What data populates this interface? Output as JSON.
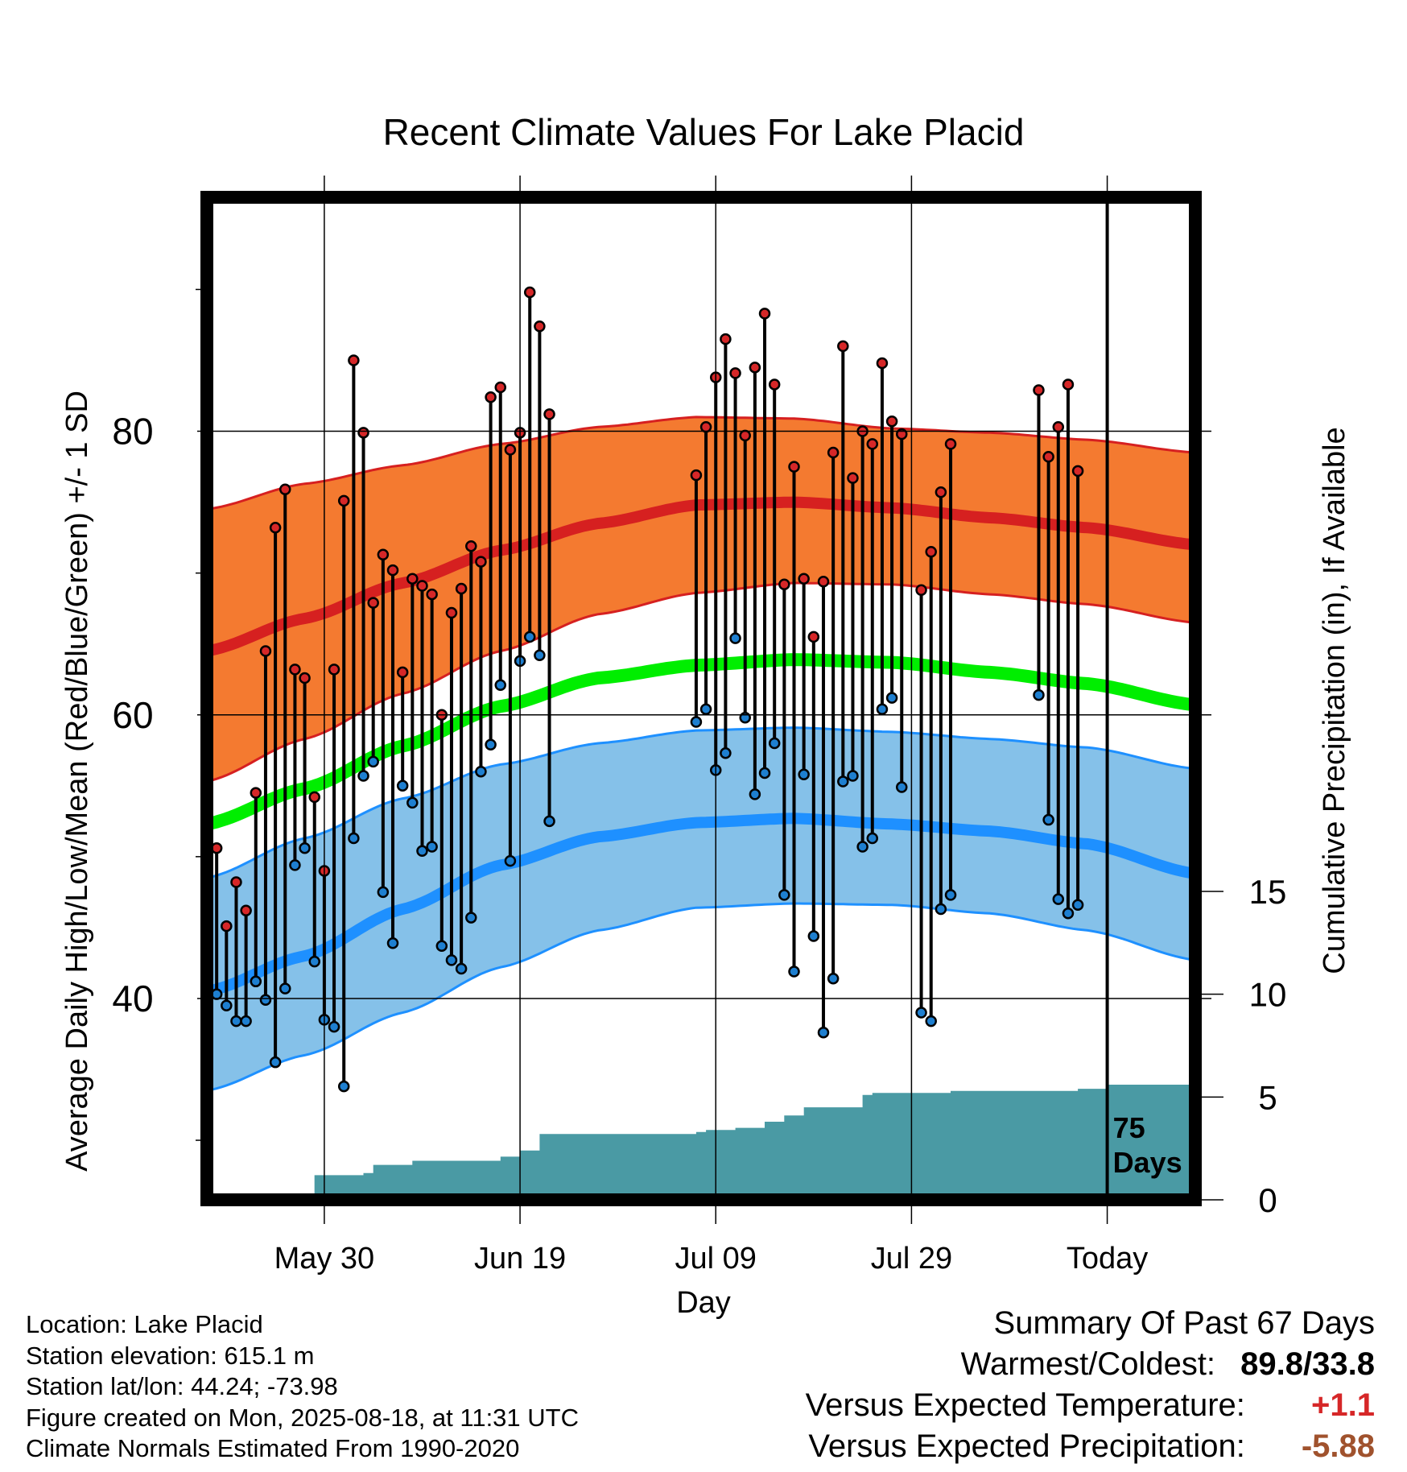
{
  "chart_data": {
    "type": "line",
    "title": "Recent Climate Values For Lake Placid",
    "xlabel": "Day",
    "ylabel_left": "Average Daily High/Low/Mean (Red/Blue/Green) +/- 1 SD",
    "ylabel_right": "Cumulative Precipitation (in), If Available",
    "x_ticks": [
      {
        "day": 12,
        "label": "May 30"
      },
      {
        "day": 32,
        "label": "Jun 19"
      },
      {
        "day": 52,
        "label": "Jul 09"
      },
      {
        "day": 72,
        "label": "Jul 29"
      },
      {
        "day": 92,
        "label": "Today"
      }
    ],
    "x_range_days": [
      0,
      101
    ],
    "x_axis_start_date": "May 18",
    "y_left_ticks": [
      40,
      60,
      80
    ],
    "y_left_range": [
      25.8,
      96.5
    ],
    "y_right_ticks": [
      0,
      5,
      10,
      15
    ],
    "y_right_range": [
      0,
      15
    ],
    "today_marker_label": "75 Days",
    "normals": {
      "days": [
        0,
        10,
        20,
        30,
        40,
        50,
        60,
        70,
        80,
        90,
        101
      ],
      "high_mean": [
        64.5,
        66.8,
        69.3,
        71.6,
        73.5,
        74.8,
        75.0,
        74.6,
        73.9,
        73.2,
        72.0
      ],
      "high_upper": [
        74.5,
        76.3,
        77.6,
        79.1,
        80.3,
        81.0,
        80.9,
        80.2,
        79.9,
        79.4,
        78.5
      ],
      "high_lower": [
        55.3,
        58.3,
        61.5,
        64.5,
        67.1,
        68.6,
        69.3,
        69.2,
        68.5,
        67.8,
        66.5
      ],
      "mean": [
        52.3,
        54.8,
        57.8,
        60.6,
        62.6,
        63.5,
        63.9,
        63.7,
        63.0,
        62.2,
        60.7
      ],
      "low_mean": [
        40.5,
        43.0,
        46.3,
        49.4,
        51.4,
        52.4,
        52.7,
        52.3,
        51.8,
        50.9,
        48.8
      ],
      "low_upper": [
        48.5,
        51.3,
        54.1,
        56.5,
        58.0,
        58.9,
        59.1,
        58.8,
        58.3,
        57.7,
        56.2
      ],
      "low_lower": [
        33.5,
        36.0,
        39.0,
        42.2,
        44.8,
        46.4,
        46.7,
        46.6,
        46.0,
        44.8,
        42.7
      ]
    },
    "series": [
      {
        "name": "Daily High",
        "color": "#d62728",
        "points": [
          [
            0,
            46.3
          ],
          [
            1,
            50.6
          ],
          [
            2,
            45.1
          ],
          [
            3,
            48.2
          ],
          [
            4,
            46.2
          ],
          [
            5,
            54.5
          ],
          [
            6,
            64.5
          ],
          [
            7,
            73.2
          ],
          [
            8,
            75.9
          ],
          [
            9,
            63.2
          ],
          [
            10,
            62.6
          ],
          [
            11,
            54.2
          ],
          [
            12,
            49.0
          ],
          [
            13,
            63.2
          ],
          [
            14,
            75.1
          ],
          [
            15,
            85.0
          ],
          [
            16,
            79.9
          ],
          [
            17,
            67.9
          ],
          [
            18,
            71.3
          ],
          [
            19,
            70.2
          ],
          [
            20,
            63.0
          ],
          [
            21,
            69.6
          ],
          [
            22,
            69.1
          ],
          [
            23,
            68.5
          ],
          [
            24,
            60.0
          ],
          [
            25,
            67.2
          ],
          [
            26,
            68.9
          ],
          [
            27,
            71.9
          ],
          [
            28,
            70.8
          ],
          [
            29,
            82.4
          ],
          [
            30,
            83.1
          ],
          [
            31,
            78.7
          ],
          [
            32,
            79.9
          ],
          [
            33,
            89.8
          ],
          [
            34,
            87.4
          ],
          [
            35,
            81.2
          ],
          [
            50,
            76.9
          ],
          [
            51,
            80.3
          ],
          [
            52,
            83.8
          ],
          [
            53,
            86.5
          ],
          [
            54,
            84.1
          ],
          [
            55,
            79.7
          ],
          [
            56,
            84.5
          ],
          [
            57,
            88.3
          ],
          [
            58,
            83.3
          ],
          [
            59,
            69.2
          ],
          [
            60,
            77.5
          ],
          [
            61,
            69.6
          ],
          [
            62,
            65.5
          ],
          [
            63,
            69.4
          ],
          [
            64,
            78.5
          ],
          [
            65,
            86.0
          ],
          [
            66,
            76.7
          ],
          [
            67,
            80.0
          ],
          [
            68,
            79.1
          ],
          [
            69,
            84.8
          ],
          [
            70,
            80.7
          ],
          [
            71,
            79.8
          ],
          [
            73,
            68.8
          ],
          [
            74,
            71.5
          ],
          [
            75,
            75.7
          ],
          [
            76,
            79.1
          ],
          [
            85,
            82.9
          ],
          [
            86,
            78.2
          ],
          [
            87,
            80.3
          ],
          [
            88,
            83.3
          ],
          [
            89,
            77.2
          ]
        ]
      },
      {
        "name": "Daily Low",
        "color": "#1e7fd0",
        "points": [
          [
            0,
            34.5
          ],
          [
            1,
            40.3
          ],
          [
            2,
            39.5
          ],
          [
            3,
            38.4
          ],
          [
            4,
            38.4
          ],
          [
            5,
            41.2
          ],
          [
            6,
            39.9
          ],
          [
            7,
            35.5
          ],
          [
            8,
            40.7
          ],
          [
            9,
            49.4
          ],
          [
            10,
            50.6
          ],
          [
            11,
            42.6
          ],
          [
            12,
            38.5
          ],
          [
            13,
            38.0
          ],
          [
            14,
            33.8
          ],
          [
            15,
            51.3
          ],
          [
            16,
            55.7
          ],
          [
            17,
            56.7
          ],
          [
            18,
            47.5
          ],
          [
            19,
            43.9
          ],
          [
            20,
            55.0
          ],
          [
            21,
            53.8
          ],
          [
            22,
            50.4
          ],
          [
            23,
            50.7
          ],
          [
            24,
            43.7
          ],
          [
            25,
            42.7
          ],
          [
            26,
            42.1
          ],
          [
            27,
            45.7
          ],
          [
            28,
            56.0
          ],
          [
            29,
            57.9
          ],
          [
            30,
            62.1
          ],
          [
            31,
            49.7
          ],
          [
            32,
            63.8
          ],
          [
            33,
            65.5
          ],
          [
            34,
            64.2
          ],
          [
            35,
            52.5
          ],
          [
            50,
            59.5
          ],
          [
            51,
            60.4
          ],
          [
            52,
            56.1
          ],
          [
            53,
            57.3
          ],
          [
            54,
            65.4
          ],
          [
            55,
            59.8
          ],
          [
            56,
            54.4
          ],
          [
            57,
            55.9
          ],
          [
            58,
            58.0
          ],
          [
            59,
            47.3
          ],
          [
            60,
            41.9
          ],
          [
            61,
            55.8
          ],
          [
            62,
            44.4
          ],
          [
            63,
            37.6
          ],
          [
            64,
            41.4
          ],
          [
            65,
            55.3
          ],
          [
            66,
            55.7
          ],
          [
            67,
            50.7
          ],
          [
            68,
            51.3
          ],
          [
            69,
            60.4
          ],
          [
            70,
            61.2
          ],
          [
            71,
            54.9
          ],
          [
            73,
            39.0
          ],
          [
            74,
            38.4
          ],
          [
            75,
            46.3
          ],
          [
            76,
            47.3
          ],
          [
            85,
            61.4
          ],
          [
            86,
            52.6
          ],
          [
            87,
            47.0
          ],
          [
            88,
            46.0
          ],
          [
            89,
            46.6
          ]
        ]
      }
    ],
    "precipitation": {
      "color": "#4a9aa4",
      "steps": [
        [
          0,
          0.0
        ],
        [
          4,
          0.2
        ],
        [
          6,
          0.2
        ],
        [
          10,
          0.3
        ],
        [
          11,
          1.2
        ],
        [
          16,
          1.3
        ],
        [
          17,
          1.7
        ],
        [
          21,
          1.9
        ],
        [
          30,
          2.1
        ],
        [
          32,
          2.4
        ],
        [
          34,
          3.2
        ],
        [
          50,
          3.3
        ],
        [
          51,
          3.4
        ],
        [
          54,
          3.5
        ],
        [
          57,
          3.8
        ],
        [
          59,
          4.1
        ],
        [
          61,
          4.5
        ],
        [
          63,
          4.5
        ],
        [
          67,
          5.1
        ],
        [
          68,
          5.2
        ],
        [
          76,
          5.3
        ],
        [
          88,
          5.3
        ],
        [
          89,
          5.4
        ],
        [
          92,
          5.6
        ],
        [
          101,
          5.6
        ]
      ]
    }
  },
  "info": {
    "location": "Location: Lake Placid",
    "elevation": "Station elevation: 615.1 m",
    "latlon": "Station lat/lon: 44.24; -73.98",
    "created": "Figure created on Mon, 2025-08-18, at 11:31 UTC",
    "normals": "Climate Normals Estimated From 1990-2020"
  },
  "summary": {
    "heading": "Summary Of Past 67 Days",
    "warm_cold_label": "Warmest/Coldest:",
    "warm_cold_value": "89.8/33.8",
    "temp_label": "Versus Expected Temperature:",
    "temp_value": "+1.1",
    "temp_color": "#d62728",
    "precip_label": "Versus Expected Precipitation:",
    "precip_value": "-5.88",
    "precip_color": "#a0522d"
  },
  "colors": {
    "high_band": "#f47a30",
    "high_mean": "#d62020",
    "low_band": "#85c1e9",
    "low_mean": "#1e90ff",
    "low_band_edge": "#1e90ff",
    "mean_line": "#00ee00",
    "frame": "#000000"
  }
}
